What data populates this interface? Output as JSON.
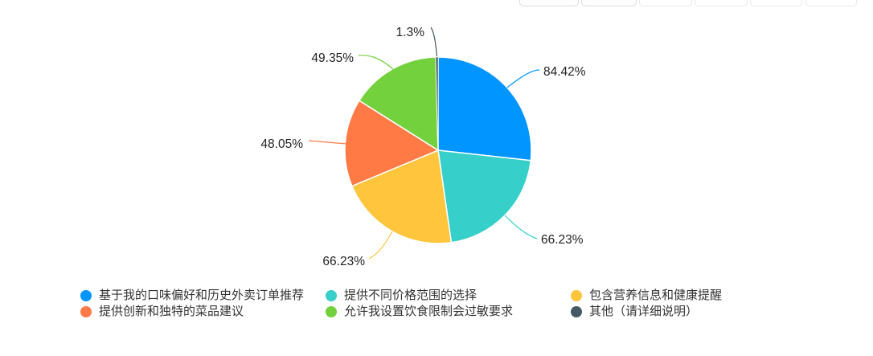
{
  "chart_data": {
    "type": "pie",
    "title": "",
    "categories": [
      "基于我的口味偏好和历史外卖订单推荐",
      "提供不同价格范围的选择",
      "包含营养信息和健康提醒",
      "提供创新和独特的菜品建议",
      "允许我设置饮食限制会过敏要求",
      "其他（请详细说明）"
    ],
    "values": [
      84.42,
      66.23,
      66.23,
      48.05,
      49.35,
      1.3
    ],
    "value_labels": [
      "84.42%",
      "66.23%",
      "66.23%",
      "48.05%",
      "49.35%",
      "1.3%"
    ],
    "colors": [
      "#0095ff",
      "#36cfc9",
      "#ffc53d",
      "#ff7a45",
      "#73d13d",
      "#455a64"
    ],
    "legend_position": "bottom",
    "label_text_color": "#222222",
    "legend_text_color": "#333333"
  }
}
